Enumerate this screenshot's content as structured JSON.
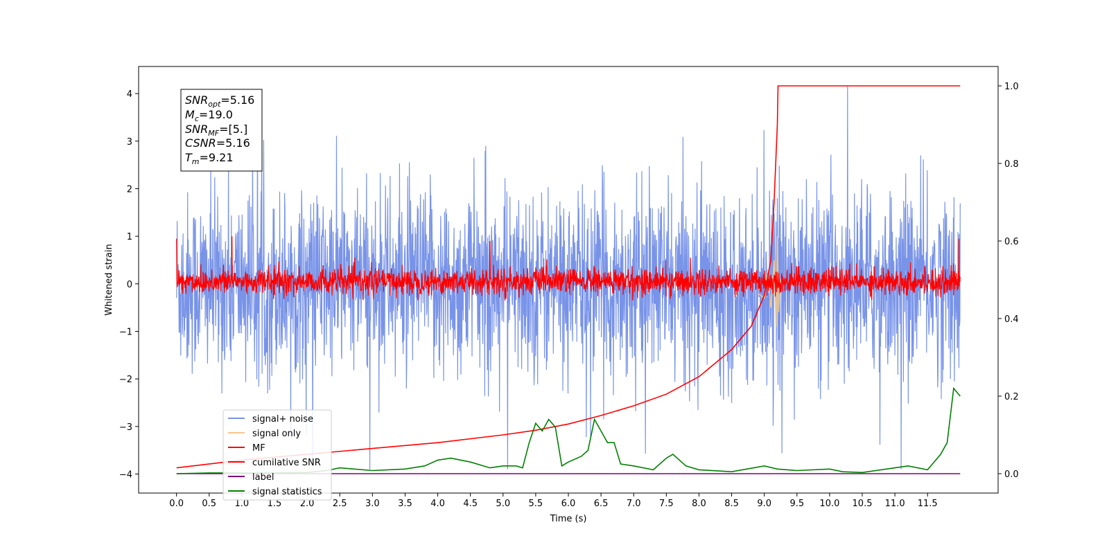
{
  "chart_data": {
    "type": "line",
    "xlabel": "Time (s)",
    "ylabel": "Whitened strain",
    "xlim": [
      -0.58,
      12.58
    ],
    "ylim": [
      -4.4,
      4.57
    ],
    "y2lim": [
      -0.05,
      1.05
    ],
    "xticks": [
      "0.0",
      "0.5",
      "1.0",
      "1.5",
      "2.0",
      "2.5",
      "3.0",
      "3.5",
      "4.0",
      "4.5",
      "5.0",
      "5.5",
      "6.0",
      "6.5",
      "7.0",
      "7.5",
      "8.0",
      "8.5",
      "9.0",
      "9.5",
      "10.0",
      "10.5",
      "11.0",
      "11.5"
    ],
    "yticks": [
      "-4",
      "-3",
      "-2",
      "-1",
      "0",
      "1",
      "2",
      "3",
      "4"
    ],
    "y2ticks": [
      "0.0",
      "0.2",
      "0.4",
      "0.6",
      "0.8",
      "1.0"
    ],
    "stats": {
      "snr_opt": {
        "sym": "SNR",
        "sub": "opt",
        "val": "=5.16"
      },
      "mc": {
        "sym": "M",
        "sub": "c",
        "val": "=19.0"
      },
      "snr_mf": {
        "sym": "SNR",
        "sub": "MF",
        "val": "=[5.]"
      },
      "csnr": {
        "sym": "CSNR",
        "sub": "",
        "val": "=5.16"
      },
      "tm": {
        "sym": "T",
        "sub": "m",
        "val": "=9.21"
      }
    },
    "legend": [
      "signal+ noise",
      "signal only",
      "MF",
      "cumilative SNR",
      "label",
      "signal statistics"
    ],
    "colors": {
      "noise": "#7893e8",
      "signal": "#f3c88a",
      "mf": "#ff0000",
      "csnr": "#ff0000",
      "label": "#800080",
      "stats": "#008000"
    },
    "series": [
      {
        "name": "signal+ noise",
        "axis": "left",
        "x_range": [
          0,
          12
        ],
        "amplitude_range": [
          -3.9,
          4.15
        ],
        "typical_range": [
          -1.6,
          1.7
        ]
      },
      {
        "name": "signal only",
        "axis": "left",
        "x": [
          8.9,
          9.0,
          9.05,
          9.1,
          9.15,
          9.18,
          9.2,
          9.22,
          9.25
        ],
        "y": [
          -0.2,
          -0.3,
          0.3,
          -0.5,
          0.5,
          -0.9,
          1.0,
          -0.6,
          0.1
        ]
      },
      {
        "name": "MF",
        "axis": "left",
        "x_range": [
          0,
          12
        ],
        "typical_range": [
          -0.35,
          0.55
        ],
        "peaks": [
          [
            0,
            0.95
          ],
          [
            0.85,
            1.0
          ],
          [
            4.8,
            0.9
          ],
          [
            11.98,
            0.95
          ]
        ]
      },
      {
        "name": "cumilative SNR",
        "axis": "right",
        "x": [
          0,
          1,
          2,
          3,
          4,
          5,
          5.5,
          6,
          6.5,
          7,
          7.5,
          8,
          8.5,
          8.8,
          9.0,
          9.1,
          9.15,
          9.2,
          9.21,
          12
        ],
        "y": [
          0.015,
          0.035,
          0.05,
          0.065,
          0.08,
          0.1,
          0.112,
          0.128,
          0.15,
          0.175,
          0.205,
          0.25,
          0.32,
          0.38,
          0.46,
          0.55,
          0.7,
          0.9,
          1.0,
          1.0
        ]
      },
      {
        "name": "label",
        "axis": "right",
        "x": [
          0,
          12
        ],
        "y": [
          0.0,
          0.0
        ]
      },
      {
        "name": "signal statistics",
        "axis": "right",
        "x": [
          0,
          0.5,
          1.0,
          1.5,
          2.0,
          2.3,
          2.5,
          3.0,
          3.5,
          3.8,
          4.0,
          4.2,
          4.5,
          4.8,
          5.0,
          5.2,
          5.3,
          5.4,
          5.5,
          5.6,
          5.7,
          5.8,
          5.9,
          6.0,
          6.2,
          6.3,
          6.4,
          6.6,
          6.7,
          6.8,
          7.0,
          7.3,
          7.5,
          7.6,
          7.8,
          8.0,
          8.5,
          9.0,
          9.2,
          9.5,
          10.0,
          10.2,
          10.5,
          11.0,
          11.2,
          11.5,
          11.7,
          11.8,
          11.9,
          12.0
        ],
        "y": [
          0.0,
          0.002,
          0.002,
          0.002,
          0.003,
          0.008,
          0.015,
          0.008,
          0.012,
          0.02,
          0.035,
          0.04,
          0.03,
          0.015,
          0.02,
          0.02,
          0.015,
          0.08,
          0.13,
          0.11,
          0.14,
          0.12,
          0.02,
          0.03,
          0.045,
          0.06,
          0.14,
          0.08,
          0.08,
          0.025,
          0.02,
          0.01,
          0.04,
          0.05,
          0.02,
          0.01,
          0.005,
          0.02,
          0.012,
          0.008,
          0.012,
          0.005,
          0.003,
          0.015,
          0.02,
          0.01,
          0.05,
          0.08,
          0.22,
          0.2
        ]
      }
    ]
  }
}
